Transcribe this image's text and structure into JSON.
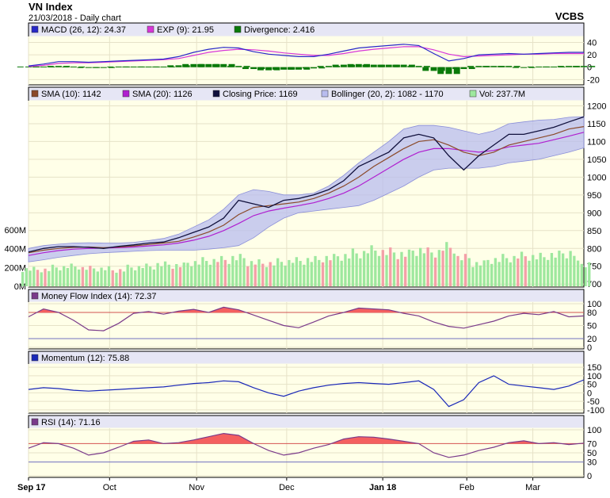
{
  "header": {
    "title": "VN Index",
    "subtitle": "21/03/2018 - Daily chart",
    "brand": "VCBS"
  },
  "colors": {
    "panel_bg": "#ffffe8",
    "legend_bg": "#e6e6f5",
    "macd": "#2828c8",
    "exp": "#d836d8",
    "divergence": "#0a7a0a",
    "sma10": "#8b4a2a",
    "sma20": "#b020d0",
    "close": "#10103c",
    "boll_fill": "#b8bcef",
    "boll_line": "#8a8ed8",
    "vol_up": "#9ee89e",
    "vol_down": "#f4a0a8",
    "mfi_line": "#7a3a8a",
    "mfi_fill": "#f46060",
    "mom_line": "#1a28b8",
    "rsi_line": "#7a3a8a",
    "rsi_fill": "#f46060",
    "ref_line": "#d05050"
  },
  "chart_data": [
    {
      "id": "macd",
      "type": "line+bar",
      "legend": [
        {
          "icon": "macd",
          "label": "MACD (26, 12): 24.37"
        },
        {
          "icon": "exp",
          "label": "EXP (9): 21.95"
        },
        {
          "icon": "divergence",
          "label": "Divergence: 2.416"
        }
      ],
      "yticks": [
        "40",
        "20",
        "0",
        "-20"
      ],
      "ylim": [
        -26,
        47
      ],
      "x_days": [
        0,
        5,
        10,
        15,
        20,
        25,
        30,
        35,
        40,
        45,
        50,
        55,
        60,
        65,
        70,
        75,
        80,
        85,
        90,
        95,
        100,
        105,
        110,
        115,
        120,
        125,
        130,
        135,
        140,
        145,
        150,
        155,
        160,
        165,
        170,
        175,
        180,
        185
      ],
      "macd": [
        2,
        5,
        9,
        9,
        8,
        9,
        10,
        11,
        12,
        13,
        17,
        24,
        29,
        32,
        31,
        25,
        21,
        19,
        17,
        17,
        21,
        26,
        31,
        33,
        35,
        37,
        35,
        22,
        10,
        14,
        20,
        21,
        22,
        21,
        22,
        23,
        24,
        24
      ],
      "exp": [
        1,
        3,
        6,
        7,
        7,
        8,
        9,
        10,
        11,
        12,
        14,
        19,
        24,
        27,
        29,
        28,
        26,
        23,
        21,
        19,
        19,
        22,
        26,
        29,
        31,
        33,
        33,
        28,
        21,
        17,
        18,
        19,
        20,
        21,
        21,
        22,
        22,
        22
      ],
      "divergence": [
        1,
        1,
        2,
        1,
        0,
        0,
        1,
        1,
        1,
        1,
        3,
        5,
        5,
        5,
        2,
        -3,
        -5,
        -4,
        -4,
        -2,
        2,
        4,
        5,
        4,
        4,
        4,
        2,
        -6,
        -11,
        -3,
        2,
        2,
        2,
        0,
        1,
        1,
        2,
        2
      ]
    },
    {
      "id": "price",
      "type": "line+area+bar",
      "legend": [
        {
          "icon": "sma10",
          "label": "SMA (10): 1142"
        },
        {
          "icon": "sma20",
          "label": "SMA (20): 1126"
        },
        {
          "icon": "close",
          "label": "Closing Price: 1169"
        },
        {
          "icon": "bollinger",
          "label": "Bollinger (20, 2): 1082 - 1170"
        },
        {
          "icon": "vol",
          "label": "Vol: 237.7M"
        }
      ],
      "yticks": [
        "1200",
        "1150",
        "1100",
        "1050",
        "1000",
        "950",
        "900",
        "850",
        "800",
        "750",
        "700"
      ],
      "ylim": [
        696,
        1210
      ],
      "vol_ticks": [
        "600M",
        "400M",
        "200M",
        "0M"
      ],
      "vol_max": 600,
      "x_days": [
        0,
        5,
        10,
        15,
        20,
        25,
        30,
        35,
        40,
        45,
        50,
        55,
        60,
        65,
        70,
        75,
        80,
        85,
        90,
        95,
        100,
        105,
        110,
        115,
        120,
        125,
        130,
        135,
        140,
        145,
        150,
        155,
        160,
        165,
        170,
        175,
        180,
        185
      ],
      "close": [
        790,
        800,
        805,
        805,
        803,
        800,
        806,
        810,
        815,
        818,
        830,
        845,
        860,
        885,
        935,
        925,
        915,
        935,
        940,
        950,
        965,
        990,
        1030,
        1050,
        1070,
        1110,
        1120,
        1110,
        1060,
        1020,
        1060,
        1090,
        1120,
        1120,
        1130,
        1140,
        1155,
        1169
      ],
      "sma10": [
        788,
        795,
        800,
        803,
        804,
        802,
        804,
        807,
        811,
        815,
        820,
        832,
        846,
        865,
        895,
        915,
        920,
        925,
        930,
        940,
        955,
        975,
        1000,
        1030,
        1055,
        1080,
        1100,
        1105,
        1090,
        1070,
        1060,
        1070,
        1090,
        1100,
        1110,
        1120,
        1135,
        1142
      ],
      "sma20": [
        780,
        788,
        794,
        798,
        800,
        801,
        802,
        804,
        807,
        810,
        815,
        823,
        834,
        850,
        870,
        892,
        905,
        913,
        920,
        928,
        940,
        955,
        975,
        1000,
        1025,
        1050,
        1070,
        1080,
        1080,
        1075,
        1070,
        1075,
        1085,
        1090,
        1095,
        1105,
        1115,
        1126
      ],
      "boll_upper": [
        800,
        808,
        812,
        815,
        816,
        815,
        815,
        817,
        822,
        828,
        840,
        860,
        880,
        910,
        950,
        965,
        960,
        950,
        950,
        955,
        975,
        1005,
        1040,
        1070,
        1100,
        1135,
        1145,
        1145,
        1140,
        1130,
        1120,
        1130,
        1150,
        1155,
        1160,
        1162,
        1168,
        1170
      ],
      "boll_lower": [
        762,
        768,
        775,
        780,
        785,
        788,
        790,
        792,
        794,
        795,
        795,
        795,
        798,
        802,
        808,
        830,
        860,
        885,
        900,
        905,
        910,
        915,
        920,
        935,
        955,
        975,
        1000,
        1020,
        1025,
        1025,
        1025,
        1030,
        1040,
        1045,
        1050,
        1060,
        1070,
        1082
      ],
      "volume": [
        180,
        175,
        200,
        210,
        190,
        185,
        170,
        200,
        210,
        230,
        220,
        250,
        270,
        280,
        300,
        250,
        240,
        260,
        270,
        280,
        300,
        320,
        350,
        380,
        360,
        340,
        380,
        360,
        410,
        300,
        240,
        280,
        300,
        320,
        310,
        330,
        350,
        238
      ],
      "volume_down": [
        false,
        true,
        false,
        false,
        true,
        false,
        true,
        false,
        false,
        false,
        true,
        false,
        false,
        true,
        false,
        true,
        true,
        false,
        false,
        false,
        true,
        false,
        false,
        false,
        true,
        true,
        false,
        true,
        true,
        true,
        false,
        false,
        false,
        true,
        false,
        false,
        false,
        false
      ]
    },
    {
      "id": "mfi",
      "type": "line",
      "legend": [
        {
          "icon": "mfi",
          "label": "Money Flow Index (14): 72.37"
        }
      ],
      "yticks": [
        "100",
        "80",
        "50",
        "20",
        "0"
      ],
      "ylim": [
        0,
        100
      ],
      "ref": [
        80,
        20
      ],
      "x_days": [
        0,
        5,
        10,
        15,
        20,
        25,
        30,
        35,
        40,
        45,
        50,
        55,
        60,
        65,
        70,
        75,
        80,
        85,
        90,
        95,
        100,
        105,
        110,
        115,
        120,
        125,
        130,
        135,
        140,
        145,
        150,
        155,
        160,
        165,
        170,
        175,
        180,
        185
      ],
      "values": [
        70,
        88,
        80,
        62,
        40,
        38,
        55,
        78,
        82,
        76,
        83,
        87,
        80,
        92,
        86,
        74,
        62,
        50,
        45,
        58,
        72,
        80,
        90,
        88,
        86,
        78,
        72,
        58,
        48,
        44,
        52,
        60,
        72,
        78,
        75,
        82,
        70,
        72
      ]
    },
    {
      "id": "momentum",
      "type": "line",
      "legend": [
        {
          "icon": "momentum",
          "label": "Momentum (12): 75.88"
        }
      ],
      "yticks": [
        "150",
        "100",
        "50",
        "0",
        "-50",
        "-100"
      ],
      "ylim": [
        -110,
        160
      ],
      "x_days": [
        0,
        5,
        10,
        15,
        20,
        25,
        30,
        35,
        40,
        45,
        50,
        55,
        60,
        65,
        70,
        75,
        80,
        85,
        90,
        95,
        100,
        105,
        110,
        115,
        120,
        125,
        130,
        135,
        140,
        145,
        150,
        155,
        160,
        165,
        170,
        175,
        180,
        185
      ],
      "values": [
        20,
        30,
        25,
        15,
        10,
        15,
        20,
        25,
        30,
        35,
        45,
        55,
        60,
        70,
        65,
        30,
        0,
        -20,
        10,
        30,
        45,
        55,
        60,
        55,
        50,
        60,
        70,
        20,
        -80,
        -40,
        60,
        100,
        50,
        40,
        30,
        20,
        40,
        76
      ]
    },
    {
      "id": "rsi",
      "type": "line",
      "legend": [
        {
          "icon": "rsi",
          "label": "RSI (14): 71.16"
        }
      ],
      "yticks": [
        "100",
        "70",
        "50",
        "30",
        "0"
      ],
      "ylim": [
        0,
        100
      ],
      "ref": [
        70,
        30
      ],
      "x_days": [
        0,
        5,
        10,
        15,
        20,
        25,
        30,
        35,
        40,
        45,
        50,
        55,
        60,
        65,
        70,
        75,
        80,
        85,
        90,
        95,
        100,
        105,
        110,
        115,
        120,
        125,
        130,
        135,
        140,
        145,
        150,
        155,
        160,
        165,
        170,
        175,
        180,
        185
      ],
      "values": [
        60,
        72,
        70,
        60,
        45,
        50,
        62,
        75,
        78,
        70,
        72,
        78,
        85,
        92,
        88,
        70,
        55,
        45,
        50,
        60,
        68,
        80,
        85,
        84,
        80,
        75,
        70,
        50,
        40,
        45,
        55,
        62,
        72,
        76,
        70,
        72,
        68,
        71
      ]
    }
  ],
  "xaxis": {
    "months": [
      "Sep 17",
      "Oct",
      "Nov",
      "Dec",
      "Jan 18",
      "Feb",
      "Mar"
    ],
    "month_days": [
      0,
      27,
      56,
      86,
      118,
      146,
      168
    ],
    "bold": [
      "Sep 17",
      "Jan 18"
    ]
  }
}
